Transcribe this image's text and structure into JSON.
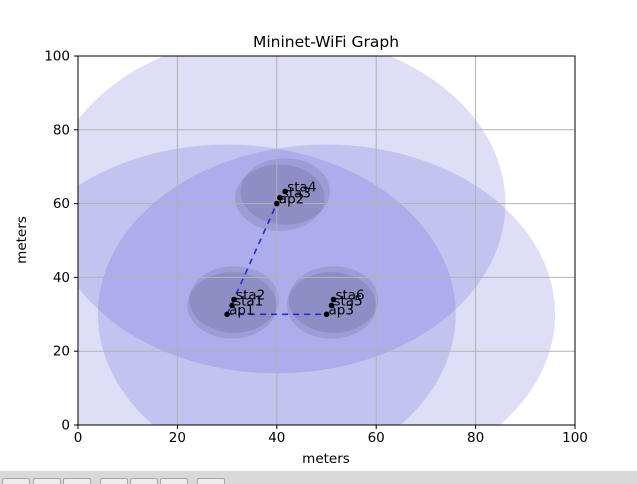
{
  "chart_data": {
    "type": "scatter",
    "title": "Mininet-WiFi Graph",
    "xlabel": "meters",
    "ylabel": "meters",
    "xlim": [
      0,
      100
    ],
    "ylim": [
      0,
      100
    ],
    "xticks": [
      0,
      20,
      40,
      60,
      80,
      100
    ],
    "yticks": [
      0,
      20,
      40,
      60,
      80,
      100
    ],
    "grid": true,
    "legend": false,
    "nodes": [
      {
        "name": "ap1",
        "kind": "access-point",
        "x": 30,
        "y": 30,
        "range": 46
      },
      {
        "name": "ap2",
        "kind": "access-point",
        "x": 40,
        "y": 60,
        "range": 46
      },
      {
        "name": "ap3",
        "kind": "access-point",
        "x": 50,
        "y": 30,
        "range": 46
      },
      {
        "name": "sta1",
        "kind": "station",
        "x": 31,
        "y": 32.4,
        "range": 9
      },
      {
        "name": "sta2",
        "kind": "station",
        "x": 31.4,
        "y": 34,
        "range": 9
      },
      {
        "name": "sta3",
        "kind": "station",
        "x": 40.6,
        "y": 61.6,
        "range": 9
      },
      {
        "name": "sta4",
        "kind": "station",
        "x": 41.7,
        "y": 63.3,
        "range": 9
      },
      {
        "name": "sta5",
        "kind": "station",
        "x": 51,
        "y": 32.4,
        "range": 9
      },
      {
        "name": "sta6",
        "kind": "station",
        "x": 51.4,
        "y": 34,
        "range": 9
      }
    ],
    "links": [
      {
        "from": "ap1",
        "to": "ap2",
        "style": "dashed"
      },
      {
        "from": "ap1",
        "to": "ap3",
        "style": "dashed"
      }
    ],
    "colors": {
      "ap_range_fill": "rgba(80,80,215,0.19)",
      "station_range_fill": "rgba(70,70,105,0.16)",
      "link": "#2a2ad9",
      "node_dot": "#000000",
      "grid": "#b2b2b2",
      "spine": "#000000",
      "background": "#ffffff",
      "toolbar_background": "#d9d9d9"
    }
  },
  "toolbar": {
    "buttons": [
      "home",
      "back",
      "forward",
      "pan",
      "zoom",
      "configure-subplots",
      "save"
    ]
  }
}
